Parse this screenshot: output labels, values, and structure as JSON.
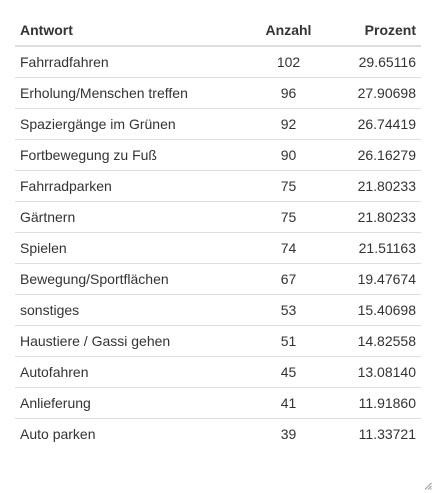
{
  "table": {
    "headers": {
      "antwort": "Antwort",
      "anzahl": "Anzahl",
      "prozent": "Prozent"
    },
    "rows": [
      {
        "antwort": "Fahrradfahren",
        "anzahl": "102",
        "prozent": "29.65116"
      },
      {
        "antwort": "Erholung/Menschen treffen",
        "anzahl": "96",
        "prozent": "27.90698"
      },
      {
        "antwort": "Spaziergänge im Grünen",
        "anzahl": "92",
        "prozent": "26.74419"
      },
      {
        "antwort": "Fortbewegung zu Fuß",
        "anzahl": "90",
        "prozent": "26.16279"
      },
      {
        "antwort": "Fahrradparken",
        "anzahl": "75",
        "prozent": "21.80233"
      },
      {
        "antwort": "Gärtnern",
        "anzahl": "75",
        "prozent": "21.80233"
      },
      {
        "antwort": "Spielen",
        "anzahl": "74",
        "prozent": "21.51163"
      },
      {
        "antwort": "Bewegung/Sportflächen",
        "anzahl": "67",
        "prozent": "19.47674"
      },
      {
        "antwort": "sonstiges",
        "anzahl": "53",
        "prozent": "15.40698"
      },
      {
        "antwort": "Haustiere / Gassi gehen",
        "anzahl": "51",
        "prozent": "14.82558"
      },
      {
        "antwort": "Autofahren",
        "anzahl": "45",
        "prozent": "13.08140"
      },
      {
        "antwort": "Anlieferung",
        "anzahl": "41",
        "prozent": "11.91860"
      },
      {
        "antwort": "Auto parken",
        "anzahl": "39",
        "prozent": "11.33721"
      }
    ]
  },
  "icons": {
    "resize_handle": "resize-grip-icon"
  }
}
